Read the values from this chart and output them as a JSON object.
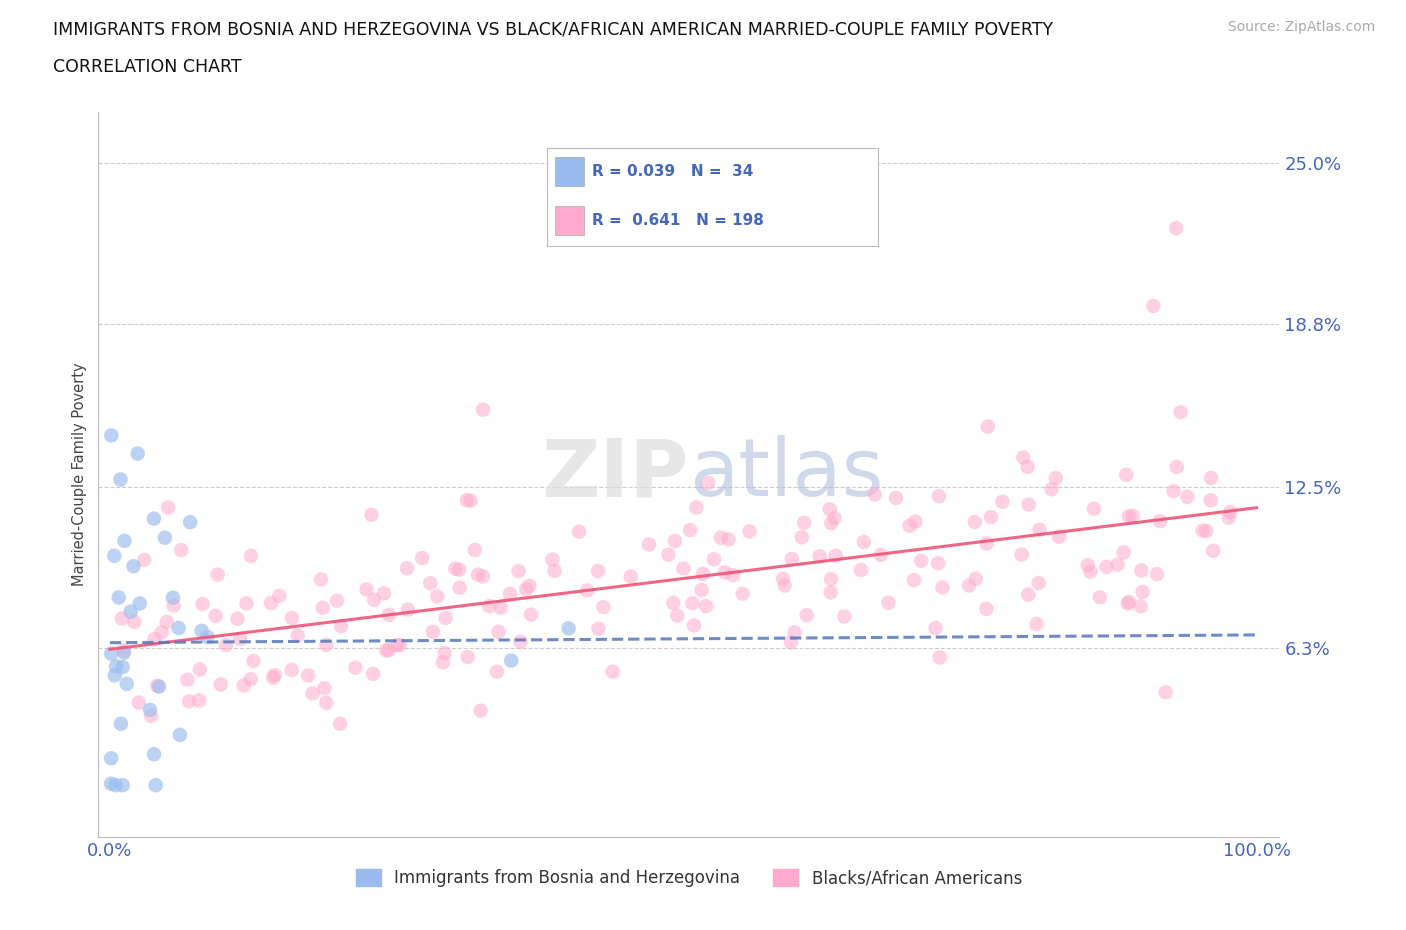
{
  "title_line1": "IMMIGRANTS FROM BOSNIA AND HERZEGOVINA VS BLACK/AFRICAN AMERICAN MARRIED-COUPLE FAMILY POVERTY",
  "title_line2": "CORRELATION CHART",
  "source": "Source: ZipAtlas.com",
  "ylabel": "Married-Couple Family Poverty",
  "xlim_min": -1,
  "xlim_max": 102,
  "ylim_min": -1,
  "ylim_max": 27,
  "yticks": [
    6.3,
    12.5,
    18.8,
    25.0
  ],
  "xtick_labels": [
    "0.0%",
    "100.0%"
  ],
  "ytick_labels": [
    "6.3%",
    "12.5%",
    "18.8%",
    "25.0%"
  ],
  "blue_color": "#99BBEE",
  "pink_color": "#FFAACC",
  "trendline_blue_color": "#5577BB",
  "trendline_pink_color": "#EE5577",
  "legend_label1": "Immigrants from Bosnia and Herzegovina",
  "legend_label2": "Blacks/African Americans",
  "tick_color": "#4466BB",
  "title_color": "#111111",
  "grid_color": "#CCCCCC",
  "watermark_text": "ZIPatlas",
  "R1": "0.039",
  "N1": "34",
  "R2": "0.641",
  "N2": "198",
  "blue_scatter_seed": 7,
  "pink_scatter_seed": 42
}
